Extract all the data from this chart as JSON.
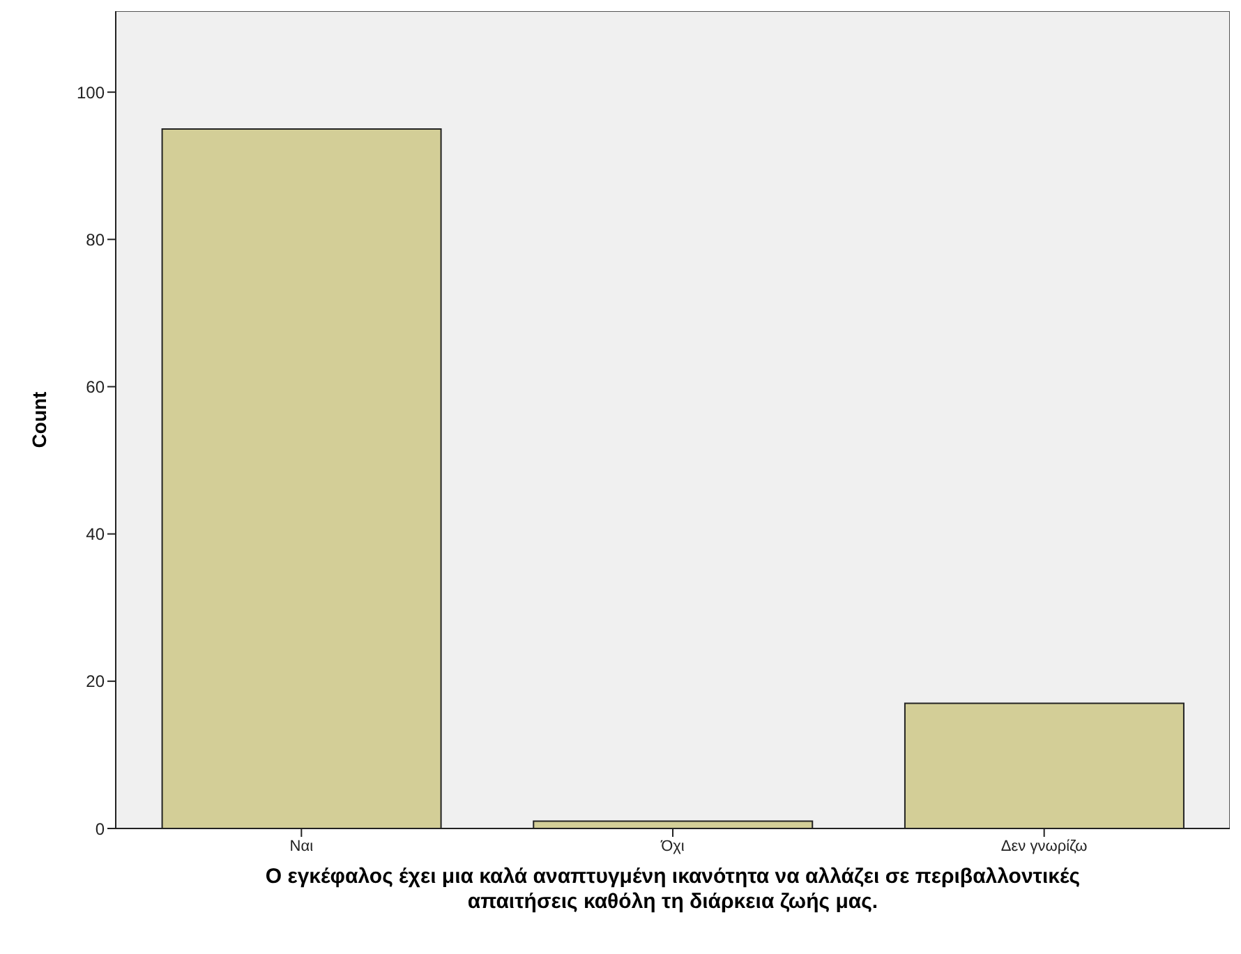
{
  "chart_data": {
    "type": "bar",
    "categories": [
      "Ναι",
      "Όχι",
      "Δεν γνωρίζω"
    ],
    "values": [
      95,
      1,
      17
    ],
    "color": "#d3ce97",
    "ylabel": "Count",
    "xlabel": "Ο εγκέφαλος έχει μια καλά αναπτυγμένη ικανότητα να αλλάζει σε περιβαλλοντικές απαιτήσεις καθόλη τη διάρκεια ζωής μας.",
    "ylim": [
      0,
      111
    ],
    "yticks": [
      0,
      20,
      40,
      60,
      80,
      100
    ]
  }
}
